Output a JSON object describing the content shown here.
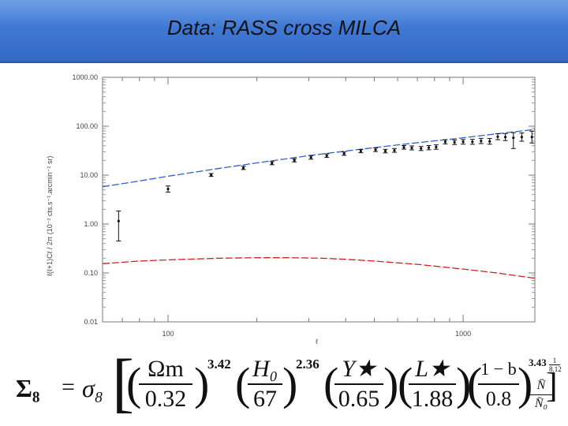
{
  "slide": {
    "title": "Data: RASS cross MILCA"
  },
  "colors": {
    "title_bar": "#3f78d4",
    "model_upper": "#2f5fc8",
    "model_lower": "#cc2222",
    "data_points": "#111111"
  },
  "chart_data": {
    "type": "scatter",
    "title": "",
    "xlabel": "ℓ",
    "ylabel": "ℓ(ℓ+1)Cℓ / 2π  (10⁻² cts.s⁻¹.arcmin⁻² sr)",
    "x_scale": "log",
    "y_scale": "log",
    "xlim": [
      60,
      1750
    ],
    "ylim": [
      0.01,
      1000
    ],
    "x_tick_labels": [
      "100",
      "1000"
    ],
    "y_tick_labels": [
      "1000.00",
      "100.00",
      "10.00",
      "1.00",
      "0.10",
      "0.01"
    ],
    "y_tick_values": [
      1000,
      100,
      10,
      1,
      0.1,
      0.01
    ],
    "x_tick_values": [
      100,
      1000
    ],
    "grid": false,
    "series": [
      {
        "style": "points-with-errorbars",
        "points": [
          {
            "x": 68,
            "y": 1.15,
            "lo": 0.45,
            "hi": 1.85
          },
          {
            "x": 100,
            "y": 5.2,
            "lo": 4.5,
            "hi": 6.0
          },
          {
            "x": 140,
            "y": 10.0,
            "lo": 9.4,
            "hi": 10.8
          },
          {
            "x": 180,
            "y": 14.0,
            "lo": 13.0,
            "hi": 15.2
          },
          {
            "x": 225,
            "y": 17.5,
            "lo": 16.3,
            "hi": 18.9
          },
          {
            "x": 268,
            "y": 20.0,
            "lo": 18.6,
            "hi": 21.6
          },
          {
            "x": 305,
            "y": 23.0,
            "lo": 21.2,
            "hi": 25.0
          },
          {
            "x": 345,
            "y": 25.0,
            "lo": 23.0,
            "hi": 27.2
          },
          {
            "x": 395,
            "y": 27.5,
            "lo": 25.4,
            "hi": 29.8
          },
          {
            "x": 450,
            "y": 31.0,
            "lo": 28.7,
            "hi": 33.5
          },
          {
            "x": 505,
            "y": 33.0,
            "lo": 30.3,
            "hi": 36.0
          },
          {
            "x": 545,
            "y": 31.0,
            "lo": 28.5,
            "hi": 33.7
          },
          {
            "x": 585,
            "y": 32.0,
            "lo": 29.3,
            "hi": 35.0
          },
          {
            "x": 630,
            "y": 37.0,
            "lo": 34.0,
            "hi": 40.3
          },
          {
            "x": 670,
            "y": 36.0,
            "lo": 32.8,
            "hi": 39.5
          },
          {
            "x": 720,
            "y": 35.0,
            "lo": 31.8,
            "hi": 38.5
          },
          {
            "x": 765,
            "y": 36.5,
            "lo": 33.0,
            "hi": 40.3
          },
          {
            "x": 810,
            "y": 37.5,
            "lo": 33.8,
            "hi": 41.6
          },
          {
            "x": 870,
            "y": 48.0,
            "lo": 43.5,
            "hi": 53.0
          },
          {
            "x": 935,
            "y": 47.0,
            "lo": 42.2,
            "hi": 52.3
          },
          {
            "x": 1000,
            "y": 48.0,
            "lo": 43.0,
            "hi": 53.6
          },
          {
            "x": 1075,
            "y": 48.0,
            "lo": 42.7,
            "hi": 54.0
          },
          {
            "x": 1150,
            "y": 50.0,
            "lo": 44.2,
            "hi": 56.5
          },
          {
            "x": 1230,
            "y": 49.0,
            "lo": 42.8,
            "hi": 56.1
          },
          {
            "x": 1310,
            "y": 61.0,
            "lo": 53.0,
            "hi": 70.3
          },
          {
            "x": 1390,
            "y": 60.0,
            "lo": 50.9,
            "hi": 70.8
          },
          {
            "x": 1480,
            "y": 58.0,
            "lo": 35.0,
            "hi": 74.0
          },
          {
            "x": 1580,
            "y": 60.0,
            "lo": 49.4,
            "hi": 72.9
          },
          {
            "x": 1710,
            "y": 60.0,
            "lo": 45.4,
            "hi": 79.2
          }
        ]
      },
      {
        "style": "dashed-line",
        "color_key": "model_upper",
        "x": [
          60,
          80,
          100,
          150,
          200,
          300,
          400,
          500,
          700,
          1000,
          1300,
          1750
        ],
        "y": [
          5.8,
          7.6,
          9.5,
          13.8,
          17.8,
          25.0,
          31.0,
          36.5,
          46.0,
          58.0,
          70.0,
          86.0
        ]
      },
      {
        "style": "dashed-line",
        "color_key": "model_lower",
        "x": [
          60,
          80,
          100,
          150,
          200,
          260,
          330,
          400,
          500,
          700,
          1000,
          1300,
          1750
        ],
        "y": [
          0.155,
          0.175,
          0.185,
          0.2,
          0.205,
          0.205,
          0.2,
          0.19,
          0.175,
          0.15,
          0.12,
          0.1,
          0.078
        ]
      }
    ]
  },
  "formula": {
    "lhs": "Σ₈",
    "eq": "=",
    "sigma": "σ₈",
    "f1_num": "Ωm",
    "f1_den": "0.32",
    "e1": "3.42",
    "f2_num": "H₀",
    "f2_den": "67",
    "e2": "2.36",
    "f3_num": "Y★",
    "f3_den": "0.65",
    "f4_num": "L★",
    "f4_den": "1.88",
    "f5_num": "1 − b",
    "f5_den": "0.8",
    "e5": "3.43",
    "f6_num": "N̄",
    "f6_den": "N̄₀",
    "outer_exp_num": "1",
    "outer_exp_den": "8.12"
  }
}
